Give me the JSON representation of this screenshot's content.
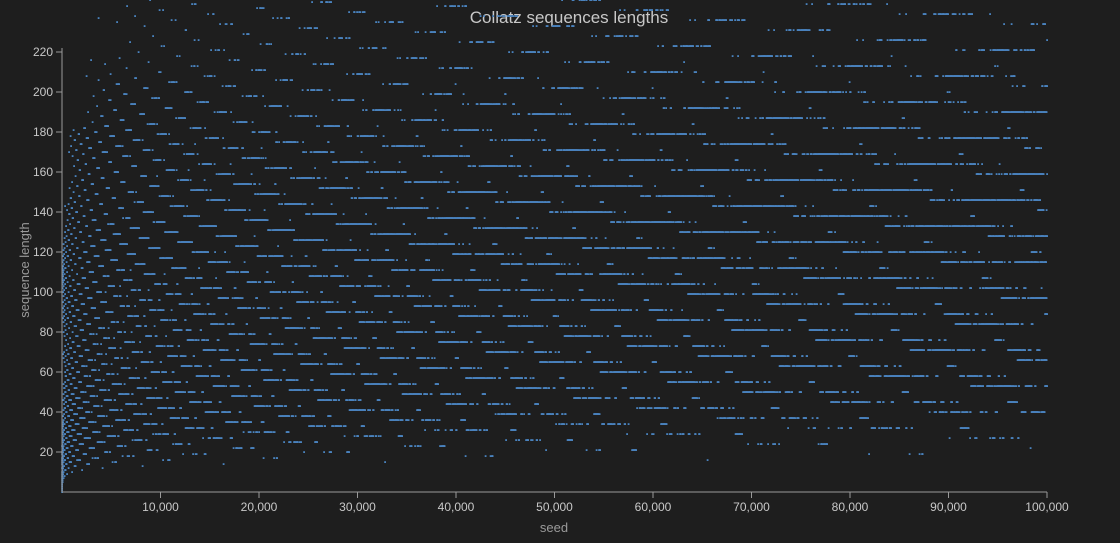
{
  "chart_data": {
    "type": "scatter",
    "title": "Collatz sequences lengths",
    "xlabel": "seed",
    "ylabel": "sequence length",
    "xlim": [
      0,
      100000
    ],
    "ylim": [
      0,
      222
    ],
    "x_ticks": [
      "10,000",
      "20,000",
      "30,000",
      "40,000",
      "50,000",
      "60,000",
      "70,000",
      "80,000",
      "90,000",
      "100,000"
    ],
    "y_ticks": [
      "20",
      "40",
      "60",
      "80",
      "100",
      "120",
      "140",
      "160",
      "180",
      "200",
      "220"
    ],
    "point_color": "#4a82bd",
    "grid": false,
    "legend": "none",
    "series": [
      {
        "name": "",
        "x_range": [
          1,
          100000
        ],
        "y_formula": "Collatz total stopping time of each seed"
      }
    ]
  }
}
